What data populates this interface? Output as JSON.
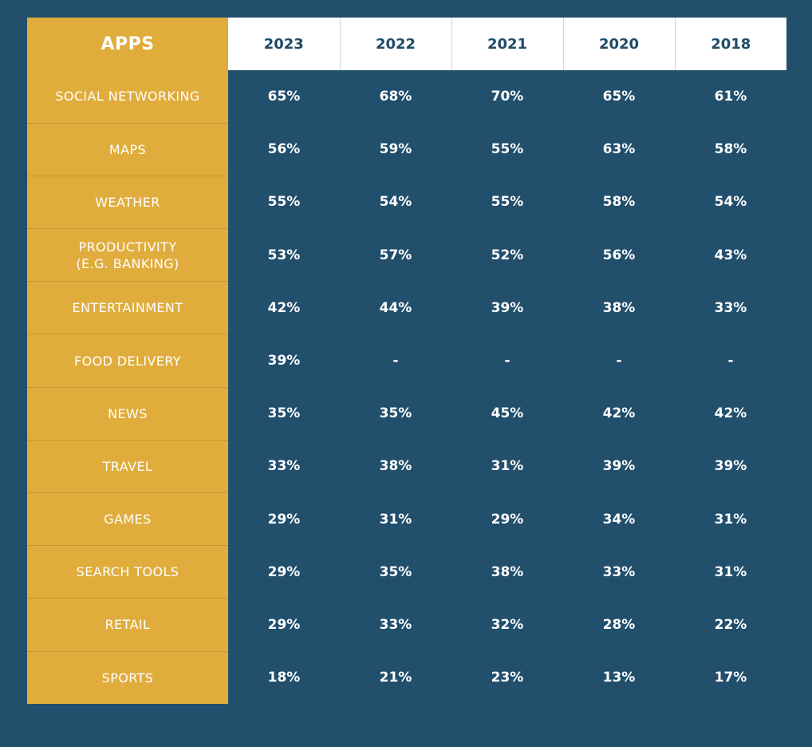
{
  "chart_data": {
    "type": "table",
    "header_label": "APPS",
    "columns": [
      "2023",
      "2022",
      "2021",
      "2020",
      "2018"
    ],
    "rows": [
      {
        "name": "SOCIAL NETWORKING",
        "values": [
          "65%",
          "68%",
          "70%",
          "65%",
          "61%"
        ]
      },
      {
        "name": "MAPS",
        "values": [
          "56%",
          "59%",
          "55%",
          "63%",
          "58%"
        ]
      },
      {
        "name": "WEATHER",
        "values": [
          "55%",
          "54%",
          "55%",
          "58%",
          "54%"
        ]
      },
      {
        "name": "PRODUCTIVITY\n(E.G. BANKING)",
        "values": [
          "53%",
          "57%",
          "52%",
          "56%",
          "43%"
        ]
      },
      {
        "name": "ENTERTAINMENT",
        "values": [
          "42%",
          "44%",
          "39%",
          "38%",
          "33%"
        ]
      },
      {
        "name": "FOOD DELIVERY",
        "values": [
          "39%",
          "-",
          "-",
          "-",
          "-"
        ]
      },
      {
        "name": "NEWS",
        "values": [
          "35%",
          "35%",
          "45%",
          "42%",
          "42%"
        ]
      },
      {
        "name": "TRAVEL",
        "values": [
          "33%",
          "38%",
          "31%",
          "39%",
          "39%"
        ]
      },
      {
        "name": "GAMES",
        "values": [
          "29%",
          "31%",
          "29%",
          "34%",
          "31%"
        ]
      },
      {
        "name": "SEARCH TOOLS",
        "values": [
          "29%",
          "35%",
          "38%",
          "33%",
          "31%"
        ]
      },
      {
        "name": "RETAIL",
        "values": [
          "29%",
          "33%",
          "32%",
          "28%",
          "22%"
        ]
      },
      {
        "name": "SPORTS",
        "values": [
          "18%",
          "21%",
          "23%",
          "13%",
          "17%"
        ]
      }
    ]
  },
  "colors": {
    "background": "#214f6c",
    "accent": "#e0ad3d",
    "header_background": "#ffffff",
    "header_text": "#1f4b66",
    "value_text": "#ffffff"
  }
}
